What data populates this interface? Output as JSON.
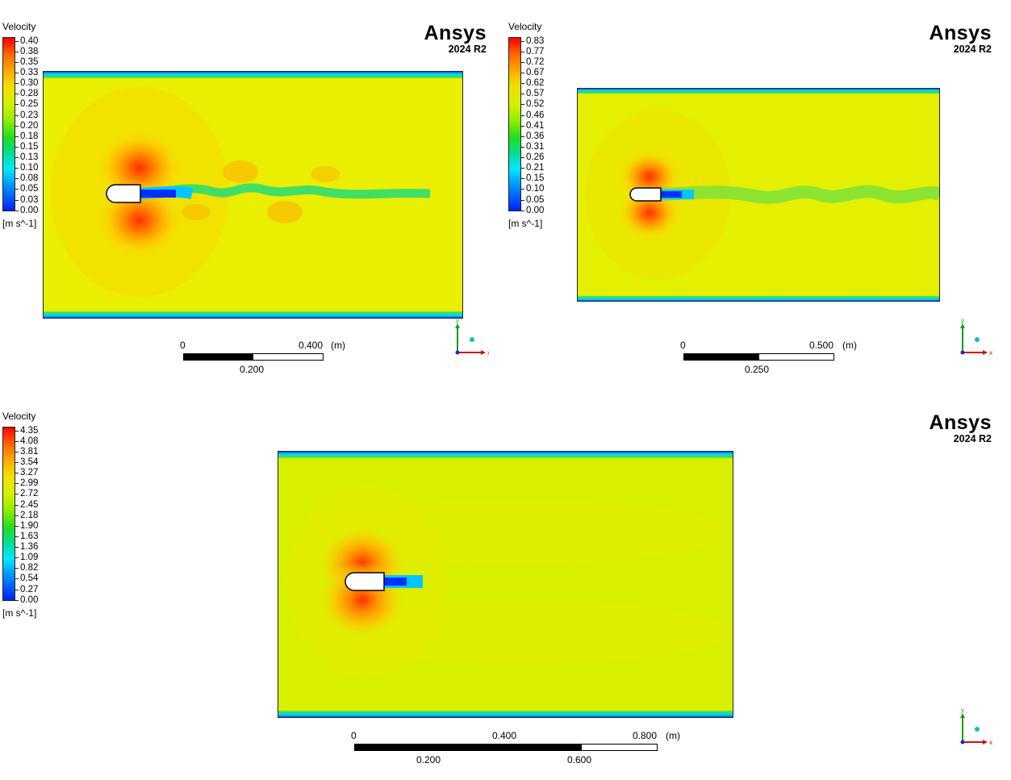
{
  "panels": [
    {
      "legend": {
        "title": "Velocity",
        "ticks": [
          "0.40",
          "0.38",
          "0.35",
          "0.33",
          "0.30",
          "0.28",
          "0.25",
          "0.23",
          "0.20",
          "0.18",
          "0.15",
          "0.13",
          "0.10",
          "0.08",
          "0.05",
          "0.03",
          "0.00"
        ],
        "unit": "[m s^-1]"
      },
      "brand": {
        "name": "Ansys",
        "version": "2024 R2"
      },
      "scale": {
        "top_labels": [
          "0",
          "0.400",
          "(m)"
        ],
        "bottom_labels": [
          "0.200"
        ]
      },
      "axes": {
        "x": "x",
        "y": "y"
      }
    },
    {
      "legend": {
        "title": "Velocity",
        "ticks": [
          "0.83",
          "0.77",
          "0.72",
          "0.67",
          "0.62",
          "0.57",
          "0.52",
          "0.46",
          "0.41",
          "0.36",
          "0.31",
          "0.26",
          "0.21",
          "0.15",
          "0.10",
          "0.05",
          "0.00"
        ],
        "unit": "[m s^-1]"
      },
      "brand": {
        "name": "Ansys",
        "version": "2024 R2"
      },
      "scale": {
        "top_labels": [
          "0",
          "0.500",
          "(m)"
        ],
        "bottom_labels": [
          "0.250"
        ]
      },
      "axes": {
        "x": "x",
        "y": "y"
      }
    },
    {
      "legend": {
        "title": "Velocity",
        "ticks": [
          "4.35",
          "4.08",
          "3.81",
          "3.54",
          "3.27",
          "2.99",
          "2.72",
          "2.45",
          "2.18",
          "1.90",
          "1.63",
          "1.36",
          "1.09",
          "0.82",
          "0.54",
          "0.27",
          "0.00"
        ],
        "unit": "[m s^-1]"
      },
      "brand": {
        "name": "Ansys",
        "version": "2024 R2"
      },
      "scale": {
        "top_labels": [
          "0",
          "0.400",
          "0.800",
          "(m)"
        ],
        "bottom_labels": [
          "0.200",
          "0.600"
        ]
      },
      "axes": {
        "x": "x",
        "y": "y"
      }
    }
  ],
  "colors": {
    "field": "#e8ef00",
    "high": "#ff4a00",
    "mid": "#ffb000",
    "wake": "#30dd60",
    "low": "#0030ff",
    "wall": "#0050ff"
  }
}
